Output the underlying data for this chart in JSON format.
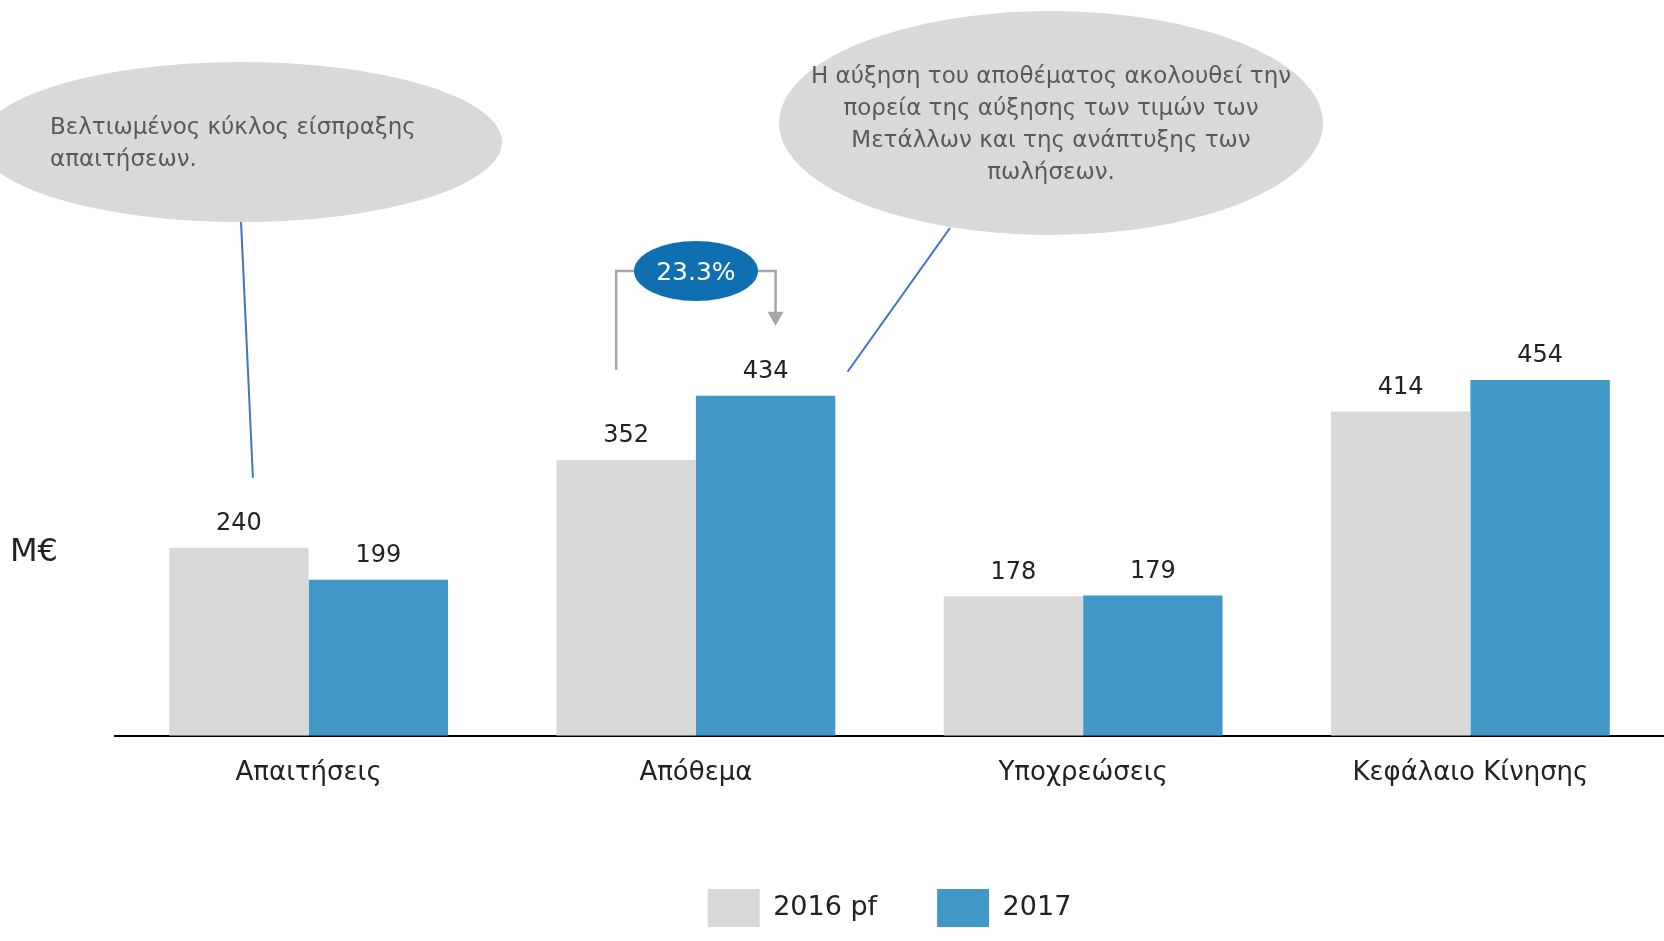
{
  "chart_data": {
    "type": "bar",
    "categories": [
      "Απαιτήσεις",
      "Απόθεμα",
      "Υποχρεώσεις",
      "Κεφάλαιο Κίνησης"
    ],
    "series": [
      {
        "name": "2016 pf",
        "color": "#d9d9d9",
        "values": [
          240,
          352,
          178,
          414
        ]
      },
      {
        "name": "2017",
        "color": "#4299c8",
        "values": [
          199,
          434,
          179,
          454
        ]
      }
    ],
    "ylabel": "M€",
    "data_labels": true,
    "legend": "bottom",
    "grid": false,
    "annotations": [
      "Βελτιωμένος κύκλος είσπραξης απαιτήσεων.",
      "Η αύξηση του αποθέματος ακολουθεί την πορεία της αύξησης των τιμών των Μετάλλων και της ανάπτυξης των πωλήσεων.",
      "23.3%"
    ]
  }
}
